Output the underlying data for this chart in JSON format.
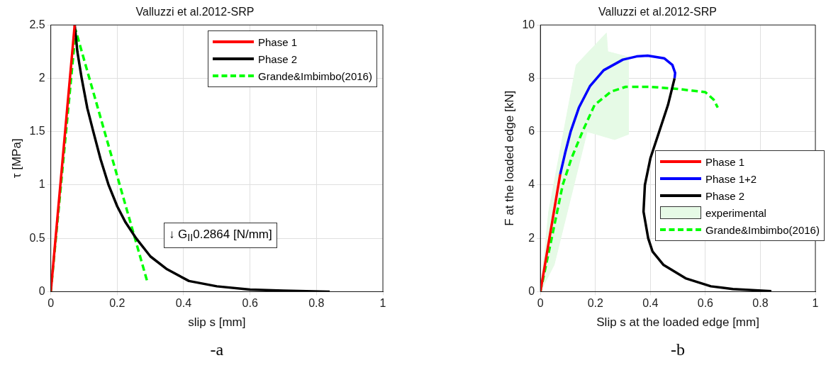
{
  "chart_data": [
    {
      "type": "line",
      "title": "Valluzzi et al.2012-SRP",
      "xlabel": "slip s [mm]",
      "ylabel": "τ [MPa]",
      "xlim": [
        0,
        1
      ],
      "ylim": [
        0,
        2.5
      ],
      "xticks": [
        0,
        0.2,
        0.4,
        0.6,
        0.8,
        1
      ],
      "yticks": [
        0,
        0.5,
        1,
        1.5,
        2,
        2.5
      ],
      "grid": true,
      "legend": "top right",
      "marker": "none",
      "annotations": [
        "↓ G$_{II}$0.2864 [N/mm]",
        "-a"
      ],
      "series": [
        {
          "name": "Phase 1",
          "color": "#ff0000",
          "x": [
            0,
            0.072
          ],
          "values": [
            0,
            2.5
          ]
        },
        {
          "name": "Phase 2",
          "color": "#000000",
          "x": [
            0.072,
            0.08,
            0.093,
            0.11,
            0.128,
            0.15,
            0.174,
            0.2,
            0.225,
            0.257,
            0.3,
            0.35,
            0.416,
            0.5,
            0.6,
            0.7,
            0.84
          ],
          "values": [
            2.5,
            2.25,
            2.0,
            1.72,
            1.5,
            1.24,
            1.0,
            0.8,
            0.65,
            0.5,
            0.33,
            0.21,
            0.1,
            0.05,
            0.02,
            0.01,
            0
          ]
        },
        {
          "name": "Grande&Imbimbo(2016)",
          "color": "#00ff00",
          "line_style": "dashed",
          "x": [
            0,
            0.075,
            0.29
          ],
          "values": [
            0,
            2.45,
            0.1
          ]
        }
      ]
    },
    {
      "type": "line",
      "title": "Valluzzi et al.2012-SRP",
      "xlabel": "Slip s at the loaded edge [mm]",
      "ylabel": "F at the loaded edge [kN]",
      "xlim": [
        0,
        1
      ],
      "ylim": [
        0,
        10
      ],
      "xticks": [
        0,
        0.2,
        0.4,
        0.6,
        0.8,
        1
      ],
      "yticks": [
        0,
        2,
        4,
        6,
        8,
        10
      ],
      "grid": true,
      "legend": "right",
      "marker": "none",
      "annotations": [
        "-b"
      ],
      "series": [
        {
          "name": "Phase 1",
          "color": "#ff0000",
          "x": [
            0,
            0.072
          ],
          "values": [
            0,
            4.4
          ]
        },
        {
          "name": "Phase 1+2",
          "color": "#0000ff",
          "x": [
            0.072,
            0.09,
            0.11,
            0.14,
            0.18,
            0.23,
            0.3,
            0.35,
            0.39,
            0.45,
            0.48,
            0.49,
            0.488
          ],
          "values": [
            4.4,
            5.2,
            6.0,
            6.9,
            7.7,
            8.3,
            8.7,
            8.82,
            8.85,
            8.75,
            8.5,
            8.2,
            8.0
          ]
        },
        {
          "name": "Phase 2",
          "color": "#000000",
          "x": [
            0.488,
            0.464,
            0.432,
            0.4,
            0.38,
            0.375,
            0.392,
            0.408,
            0.448,
            0.528,
            0.62,
            0.7,
            0.84
          ],
          "values": [
            8.0,
            7.0,
            6.0,
            5.0,
            4.0,
            3.0,
            2.0,
            1.5,
            1.0,
            0.5,
            0.2,
            0.1,
            0.02
          ]
        },
        {
          "name": "experimental",
          "type": "area",
          "color": "#e6fae6",
          "x": [
            0,
            0.03,
            0.13,
            0.24,
            0.245,
            0.32,
            0.32,
            0.27,
            0.17,
            0.05,
            0
          ],
          "values": [
            0,
            3,
            8.5,
            9.7,
            9.0,
            8.8,
            5.9,
            5.7,
            6.0,
            1,
            0
          ]
        },
        {
          "name": "Grande&Imbimbo(2016)",
          "color": "#00ff00",
          "line_style": "dashed",
          "x": [
            0,
            0.041,
            0.081,
            0.113,
            0.153,
            0.197,
            0.257,
            0.31,
            0.4,
            0.5,
            0.6,
            0.63,
            0.645
          ],
          "values": [
            0,
            2,
            4,
            5,
            6,
            7,
            7.5,
            7.68,
            7.68,
            7.6,
            7.48,
            7.2,
            6.9
          ]
        }
      ]
    }
  ]
}
